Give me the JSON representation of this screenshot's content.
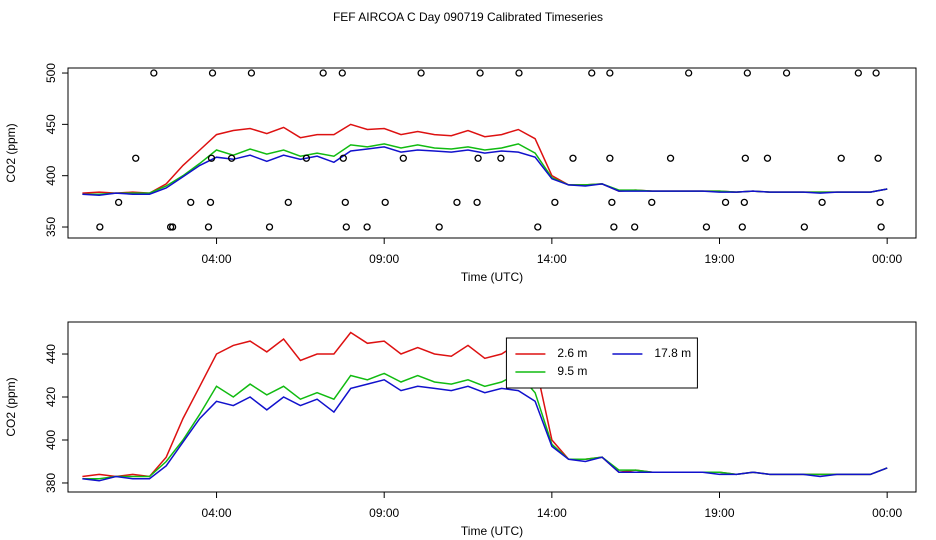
{
  "chart_data": [
    {
      "type": "line",
      "title": "FEF AIRCOA C  Day 090719  Calibrated Timeseries",
      "x_label": "Time (UTC)",
      "y_label": "CO2 (ppm)",
      "xlim": [
        -0.43,
        24.86
      ],
      "ylim": [
        339.3,
        504.9
      ],
      "xticks": [
        {
          "value": 4,
          "label": "04:00"
        },
        {
          "value": 9,
          "label": "09:00"
        },
        {
          "value": 14,
          "label": "14:00"
        },
        {
          "value": 19,
          "label": "19:00"
        },
        {
          "value": 24,
          "label": "00:00"
        }
      ],
      "yticks": [
        350,
        400,
        450,
        500
      ],
      "x": [
        0,
        0.5,
        1,
        1.5,
        2,
        2.5,
        3,
        3.5,
        4,
        4.5,
        5,
        5.5,
        6,
        6.5,
        7,
        7.5,
        8,
        8.5,
        9,
        9.5,
        10,
        10.5,
        11,
        11.5,
        12,
        12.5,
        13,
        13.5,
        14,
        14.5,
        15,
        15.5,
        16,
        16.5,
        17,
        17.5,
        18,
        18.5,
        19,
        19.5,
        20,
        20.5,
        21,
        21.5,
        22,
        22.5,
        23,
        23.5,
        24
      ],
      "series": [
        {
          "color": "#dd1111",
          "values": [
            383,
            384,
            383,
            384,
            383,
            392,
            410,
            425,
            440,
            444,
            446,
            441,
            447,
            437,
            440,
            440,
            450,
            445,
            446,
            440,
            443,
            440,
            439,
            444,
            438,
            440,
            445,
            436,
            400,
            391,
            391,
            392,
            385,
            386,
            385,
            385,
            385,
            385,
            385,
            384,
            385,
            384,
            384,
            384,
            384,
            384,
            384,
            384,
            387
          ]
        },
        {
          "color": "#11bb11",
          "values": [
            382,
            382,
            383,
            383,
            383,
            390,
            400,
            412,
            425,
            420,
            426,
            421,
            425,
            419,
            422,
            419,
            430,
            428,
            431,
            427,
            430,
            427,
            426,
            428,
            425,
            427,
            431,
            422,
            398,
            391,
            391,
            392,
            386,
            386,
            385,
            385,
            385,
            385,
            385,
            384,
            385,
            384,
            384,
            384,
            384,
            384,
            384,
            384,
            387
          ]
        },
        {
          "color": "#1111cc",
          "values": [
            382,
            381,
            383,
            382,
            382,
            388,
            399,
            410,
            418,
            416,
            420,
            414,
            420,
            416,
            419,
            413,
            424,
            426,
            428,
            423,
            425,
            424,
            423,
            425,
            422,
            424,
            423,
            418,
            397,
            391,
            390,
            392,
            385,
            385,
            385,
            385,
            385,
            385,
            384,
            384,
            385,
            384,
            384,
            384,
            383,
            384,
            384,
            384,
            387
          ]
        }
      ],
      "markers": {
        "x": [
          2.13,
          3.88,
          5.04,
          7.18,
          7.75,
          10.1,
          11.86,
          13.02,
          15.19,
          15.73,
          18.08,
          19.83,
          21.0,
          23.14,
          23.67,
          1.59,
          3.85,
          4.45,
          6.68,
          7.78,
          9.57,
          11.8,
          12.48,
          14.63,
          15.73,
          17.54,
          19.77,
          20.43,
          22.63,
          23.73,
          1.08,
          3.23,
          3.82,
          6.14,
          7.84,
          9.03,
          11.17,
          11.77,
          14.09,
          15.79,
          16.98,
          19.18,
          19.74,
          22.06,
          23.79,
          0.52,
          2.63,
          2.69,
          3.76,
          5.58,
          7.87,
          8.49,
          10.64,
          13.58,
          15.85,
          16.47,
          18.61,
          19.68,
          21.53,
          23.82
        ],
        "values": [
          500,
          500,
          500,
          500,
          500,
          500,
          500,
          500,
          500,
          500,
          500,
          500,
          500,
          500,
          500,
          417,
          417,
          417,
          417,
          417,
          417,
          417,
          417,
          417,
          417,
          417,
          417,
          417,
          417,
          417,
          374,
          374,
          374,
          374,
          374,
          374,
          374,
          374,
          374,
          374,
          374,
          374,
          374,
          374,
          374,
          350,
          350,
          350,
          350,
          350,
          350,
          350,
          350,
          350,
          350,
          350,
          350,
          350,
          350,
          350
        ]
      }
    },
    {
      "type": "line",
      "x_label": "Time (UTC)",
      "y_label": "CO2 (ppm)",
      "xlim": [
        -0.43,
        24.86
      ],
      "ylim": [
        375.8,
        454.9
      ],
      "xticks": [
        {
          "value": 4,
          "label": "04:00"
        },
        {
          "value": 9,
          "label": "09:00"
        },
        {
          "value": 14,
          "label": "14:00"
        },
        {
          "value": 19,
          "label": "19:00"
        },
        {
          "value": 24,
          "label": "00:00"
        }
      ],
      "yticks": [
        380,
        400,
        420,
        440
      ],
      "legend": "top",
      "x": [
        0,
        0.5,
        1,
        1.5,
        2,
        2.5,
        3,
        3.5,
        4,
        4.5,
        5,
        5.5,
        6,
        6.5,
        7,
        7.5,
        8,
        8.5,
        9,
        9.5,
        10,
        10.5,
        11,
        11.5,
        12,
        12.5,
        13,
        13.5,
        14,
        14.5,
        15,
        15.5,
        16,
        16.5,
        17,
        17.5,
        18,
        18.5,
        19,
        19.5,
        20,
        20.5,
        21,
        21.5,
        22,
        22.5,
        23,
        23.5,
        24
      ],
      "series": [
        {
          "name": "2.6 m",
          "color": "#dd1111",
          "values": [
            383,
            384,
            383,
            384,
            383,
            392,
            410,
            425,
            440,
            444,
            446,
            441,
            447,
            437,
            440,
            440,
            450,
            445,
            446,
            440,
            443,
            440,
            439,
            444,
            438,
            440,
            445,
            436,
            400,
            391,
            391,
            392,
            385,
            386,
            385,
            385,
            385,
            385,
            385,
            384,
            385,
            384,
            384,
            384,
            384,
            384,
            384,
            384,
            387
          ]
        },
        {
          "name": "9.5 m",
          "color": "#11bb11",
          "values": [
            382,
            382,
            383,
            383,
            383,
            390,
            400,
            412,
            425,
            420,
            426,
            421,
            425,
            419,
            422,
            419,
            430,
            428,
            431,
            427,
            430,
            427,
            426,
            428,
            425,
            427,
            431,
            422,
            398,
            391,
            391,
            392,
            386,
            386,
            385,
            385,
            385,
            385,
            385,
            384,
            385,
            384,
            384,
            384,
            384,
            384,
            384,
            384,
            387
          ]
        },
        {
          "name": "17.8 m",
          "color": "#1111cc",
          "values": [
            382,
            381,
            383,
            382,
            382,
            388,
            399,
            410,
            418,
            416,
            420,
            414,
            420,
            416,
            419,
            413,
            424,
            426,
            428,
            423,
            425,
            424,
            423,
            425,
            422,
            424,
            423,
            418,
            397,
            391,
            390,
            392,
            385,
            385,
            385,
            385,
            385,
            385,
            384,
            384,
            385,
            384,
            384,
            384,
            383,
            384,
            384,
            384,
            387
          ]
        }
      ]
    }
  ]
}
